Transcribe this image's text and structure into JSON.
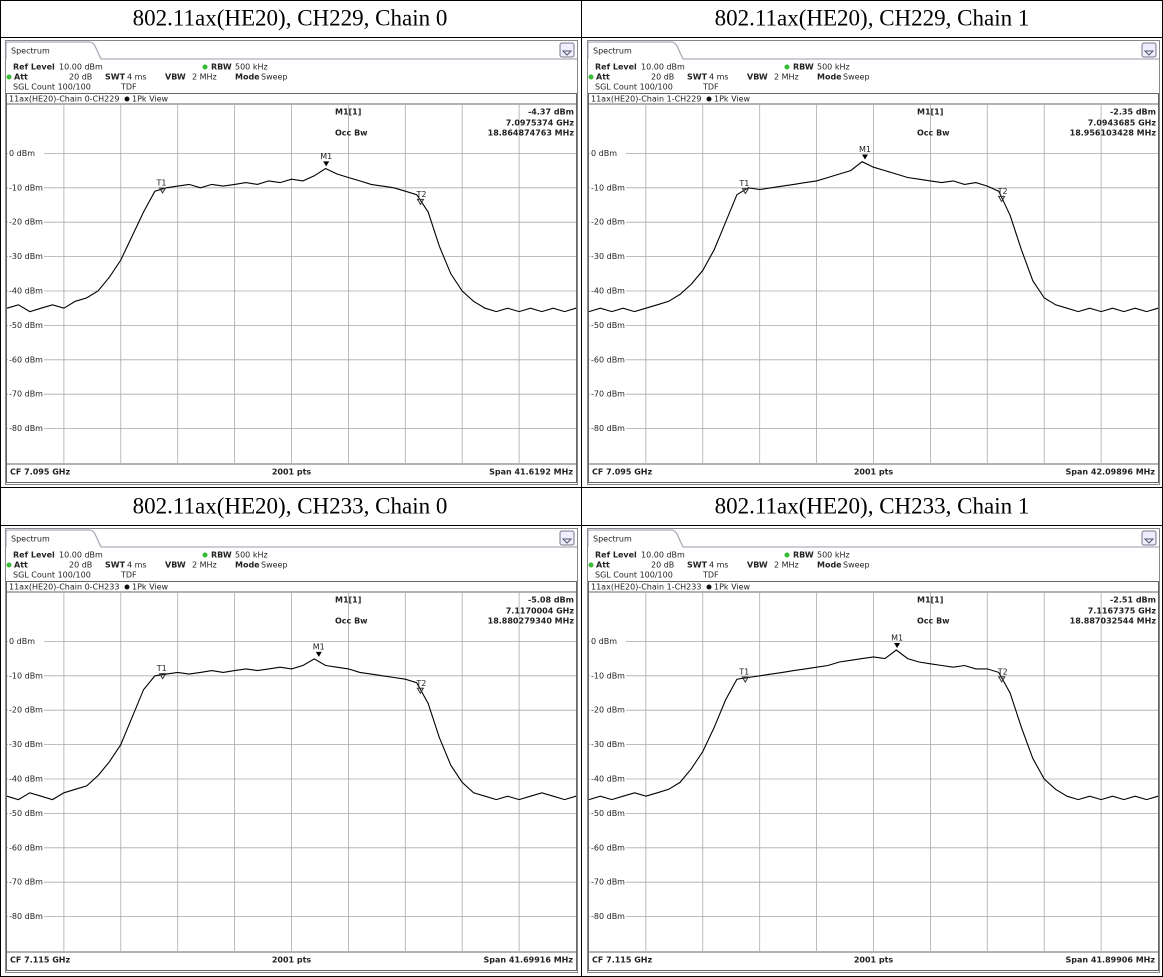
{
  "analyzer": {
    "tab": "Spectrum",
    "ref_level_label": "Ref Level",
    "ref_level": "10.00 dBm",
    "att_label": "Att",
    "att": "20 dB",
    "swt_label": "SWT",
    "swt": "4 ms",
    "rbw_label": "RBW",
    "rbw": "500 kHz",
    "vbw_label": "VBW",
    "vbw": "2 MHz",
    "mode_label": "Mode",
    "mode": "Sweep",
    "sgl_count": "SGL Count 100/100",
    "tdf": "TDF",
    "view": "1Pk View",
    "marker_title": "M1[1]",
    "occ_bw_label": "Occ Bw",
    "pts": "2001 pts",
    "m1": "M1",
    "t1": "T1",
    "t2": "T2",
    "ylim": [
      -90,
      10
    ],
    "yticks": [
      {
        "value": 0,
        "label": "0 dBm"
      },
      {
        "value": -10,
        "label": "-10 dBm"
      },
      {
        "value": -20,
        "label": "-20 dBm"
      },
      {
        "value": -30,
        "label": "-30 dBm"
      },
      {
        "value": -40,
        "label": "-40 dBm"
      },
      {
        "value": -50,
        "label": "-50 dBm"
      },
      {
        "value": -60,
        "label": "-60 dBm"
      },
      {
        "value": -70,
        "label": "-70 dBm"
      },
      {
        "value": -80,
        "label": "-80 dBm"
      }
    ]
  },
  "panels": [
    {
      "heading": "802.11ax(HE20), CH229, Chain 0",
      "trace_title": "11ax(HE20)-Chain 0-CH229",
      "marker_level": {
        "value": -4.37,
        "label": "-4.37 dBm"
      },
      "marker_freq": {
        "value": 7.0975374,
        "label": "7.0975374 GHz"
      },
      "occ_bw": {
        "value": 18.864874763,
        "label": "18.864874763 MHz"
      },
      "cf": {
        "value": 7.095,
        "label": "CF 7.095 GHz"
      },
      "span": {
        "value": 41.6192,
        "label": "Span 41.6192 MHz"
      },
      "trace": [
        -45,
        -44,
        -46,
        -45,
        -44,
        -45,
        -43,
        -42,
        -40,
        -36,
        -31,
        -24,
        -17,
        -11,
        -10,
        -9.5,
        -9,
        -10,
        -9,
        -9.5,
        -9,
        -8.5,
        -9,
        -8,
        -8.5,
        -7.5,
        -8,
        -6.5,
        -4.4,
        -6,
        -7,
        -8,
        -9,
        -9.5,
        -10,
        -11,
        -12,
        -17,
        -27,
        -35,
        -40,
        -43,
        -45,
        -46,
        -45,
        -46,
        -45,
        -46,
        -45,
        -46,
        -45
      ]
    },
    {
      "heading": "802.11ax(HE20), CH229, Chain 1",
      "trace_title": "11ax(HE20)-Chain 1-CH229",
      "marker_level": {
        "value": -2.35,
        "label": "-2.35 dBm"
      },
      "marker_freq": {
        "value": 7.0943685,
        "label": "7.0943685 GHz"
      },
      "occ_bw": {
        "value": 18.956103428,
        "label": "18.956103428 MHz"
      },
      "cf": {
        "value": 7.095,
        "label": "CF 7.095 GHz"
      },
      "span": {
        "value": 42.09896,
        "label": "Span 42.09896 MHz"
      },
      "trace": [
        -46,
        -45,
        -46,
        -45,
        -46,
        -45,
        -44,
        -43,
        -41,
        -38,
        -34,
        -28,
        -20,
        -12,
        -10,
        -10.5,
        -10,
        -9.5,
        -9,
        -8.5,
        -8,
        -7,
        -6,
        -5,
        -2.4,
        -4,
        -5,
        -6,
        -7,
        -7.5,
        -8,
        -8.5,
        -8,
        -9,
        -8.5,
        -9.5,
        -11,
        -18,
        -28,
        -37,
        -42,
        -44,
        -45,
        -46,
        -45,
        -46,
        -45,
        -46,
        -45,
        -46,
        -45
      ]
    },
    {
      "heading": "802.11ax(HE20), CH233, Chain 0",
      "trace_title": "11ax(HE20)-Chain 0-CH233",
      "marker_level": {
        "value": -5.08,
        "label": "-5.08 dBm"
      },
      "marker_freq": {
        "value": 7.1170004,
        "label": "7.1170004 GHz"
      },
      "occ_bw": {
        "value": 18.88027934,
        "label": "18.880279340 MHz"
      },
      "cf": {
        "value": 7.115,
        "label": "CF 7.115 GHz"
      },
      "span": {
        "value": 41.69916,
        "label": "Span 41.69916 MHz"
      },
      "trace": [
        -45,
        -46,
        -44,
        -45,
        -46,
        -44,
        -43,
        -42,
        -39,
        -35,
        -30,
        -22,
        -14,
        -10,
        -9.5,
        -9,
        -9.5,
        -9,
        -8.5,
        -9,
        -8.5,
        -8,
        -8.5,
        -8,
        -7.5,
        -8,
        -7,
        -5.1,
        -7,
        -7.5,
        -8,
        -9,
        -9.5,
        -10,
        -10.5,
        -11,
        -12,
        -18,
        -28,
        -36,
        -41,
        -44,
        -45,
        -46,
        -45,
        -46,
        -45,
        -44,
        -45,
        -46,
        -45
      ]
    },
    {
      "heading": "802.11ax(HE20), CH233, Chain 1",
      "trace_title": "11ax(HE20)-Chain 1-CH233",
      "marker_level": {
        "value": -2.51,
        "label": "-2.51 dBm"
      },
      "marker_freq": {
        "value": 7.1167375,
        "label": "7.1167375 GHz"
      },
      "occ_bw": {
        "value": 18.887032544,
        "label": "18.887032544 MHz"
      },
      "cf": {
        "value": 7.115,
        "label": "CF 7.115 GHz"
      },
      "span": {
        "value": 41.89906,
        "label": "Span 41.89906 MHz"
      },
      "trace": [
        -46,
        -45,
        -46,
        -45,
        -44,
        -45,
        -44,
        -43,
        -41,
        -37,
        -32,
        -25,
        -17,
        -11,
        -10.5,
        -10,
        -9.5,
        -9,
        -8.5,
        -8,
        -7.5,
        -7,
        -6,
        -5.5,
        -5,
        -4.5,
        -5,
        -2.5,
        -5,
        -6,
        -6.5,
        -7,
        -7.5,
        -7,
        -8,
        -8,
        -9,
        -15,
        -25,
        -34,
        -40,
        -43,
        -45,
        -46,
        -45,
        -46,
        -45,
        -46,
        -45,
        -46,
        -45
      ]
    }
  ]
}
